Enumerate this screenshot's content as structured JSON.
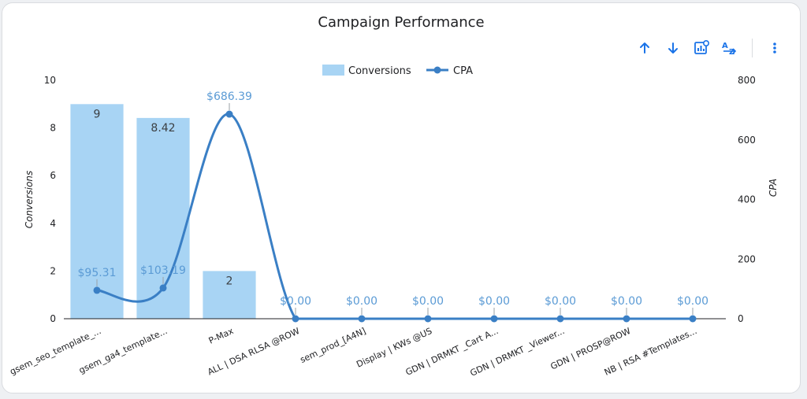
{
  "colors": {
    "bar": "#a8d4f4",
    "line": "#3a7fc5",
    "line_label": "#5b9bd5",
    "axis": "#202124",
    "toolbar_icon": "#1a73e8"
  },
  "toolbar": {
    "sort_ascending_icon": "arrow-up-icon",
    "sort_descending_icon": "arrow-down-icon",
    "chart_settings_icon": "chart-settings-icon",
    "sort_az_icon": "sort-az-icon",
    "more_icon": "more-vertical-icon"
  },
  "chart_data": {
    "type": "bar",
    "title": "Campaign Performance",
    "categories": [
      "gsem_seo_template_...",
      "gsem_ga4_template...",
      "P-Max",
      "ALL | DSA RLSA @ROW",
      "sem_prod_[A4N]",
      "Display | KWs @US",
      "GDN | DRMKT _Cart A...",
      "GDN | DRMKT _Viewer...",
      "GDN | PROSP@ROW",
      "NB | RSA #Templates..."
    ],
    "series": [
      {
        "name": "Conversions",
        "type": "bar",
        "axis": "left",
        "values": [
          9,
          8.42,
          2,
          0,
          0,
          0,
          0,
          0,
          0,
          0
        ],
        "labels": [
          "9",
          "8.42",
          "2"
        ]
      },
      {
        "name": "CPA",
        "type": "line",
        "axis": "right",
        "values": [
          95.31,
          103.19,
          686.39,
          0,
          0,
          0,
          0,
          0,
          0,
          0
        ],
        "labels": [
          "$95.31",
          "$103.19",
          "$686.39",
          "$0.00",
          "$0.00",
          "$0.00",
          "$0.00",
          "$0.00",
          "$0.00",
          "$0.00"
        ]
      }
    ],
    "ylabel": "Conversions",
    "y2label": "CPA",
    "ylim": [
      0,
      10
    ],
    "y2lim": [
      0,
      800
    ],
    "yticks": [
      "0",
      "2",
      "4",
      "6",
      "8",
      "10"
    ],
    "y2ticks": [
      "0",
      "200",
      "400",
      "600",
      "800"
    ],
    "legend": "top-center",
    "grid": false
  }
}
